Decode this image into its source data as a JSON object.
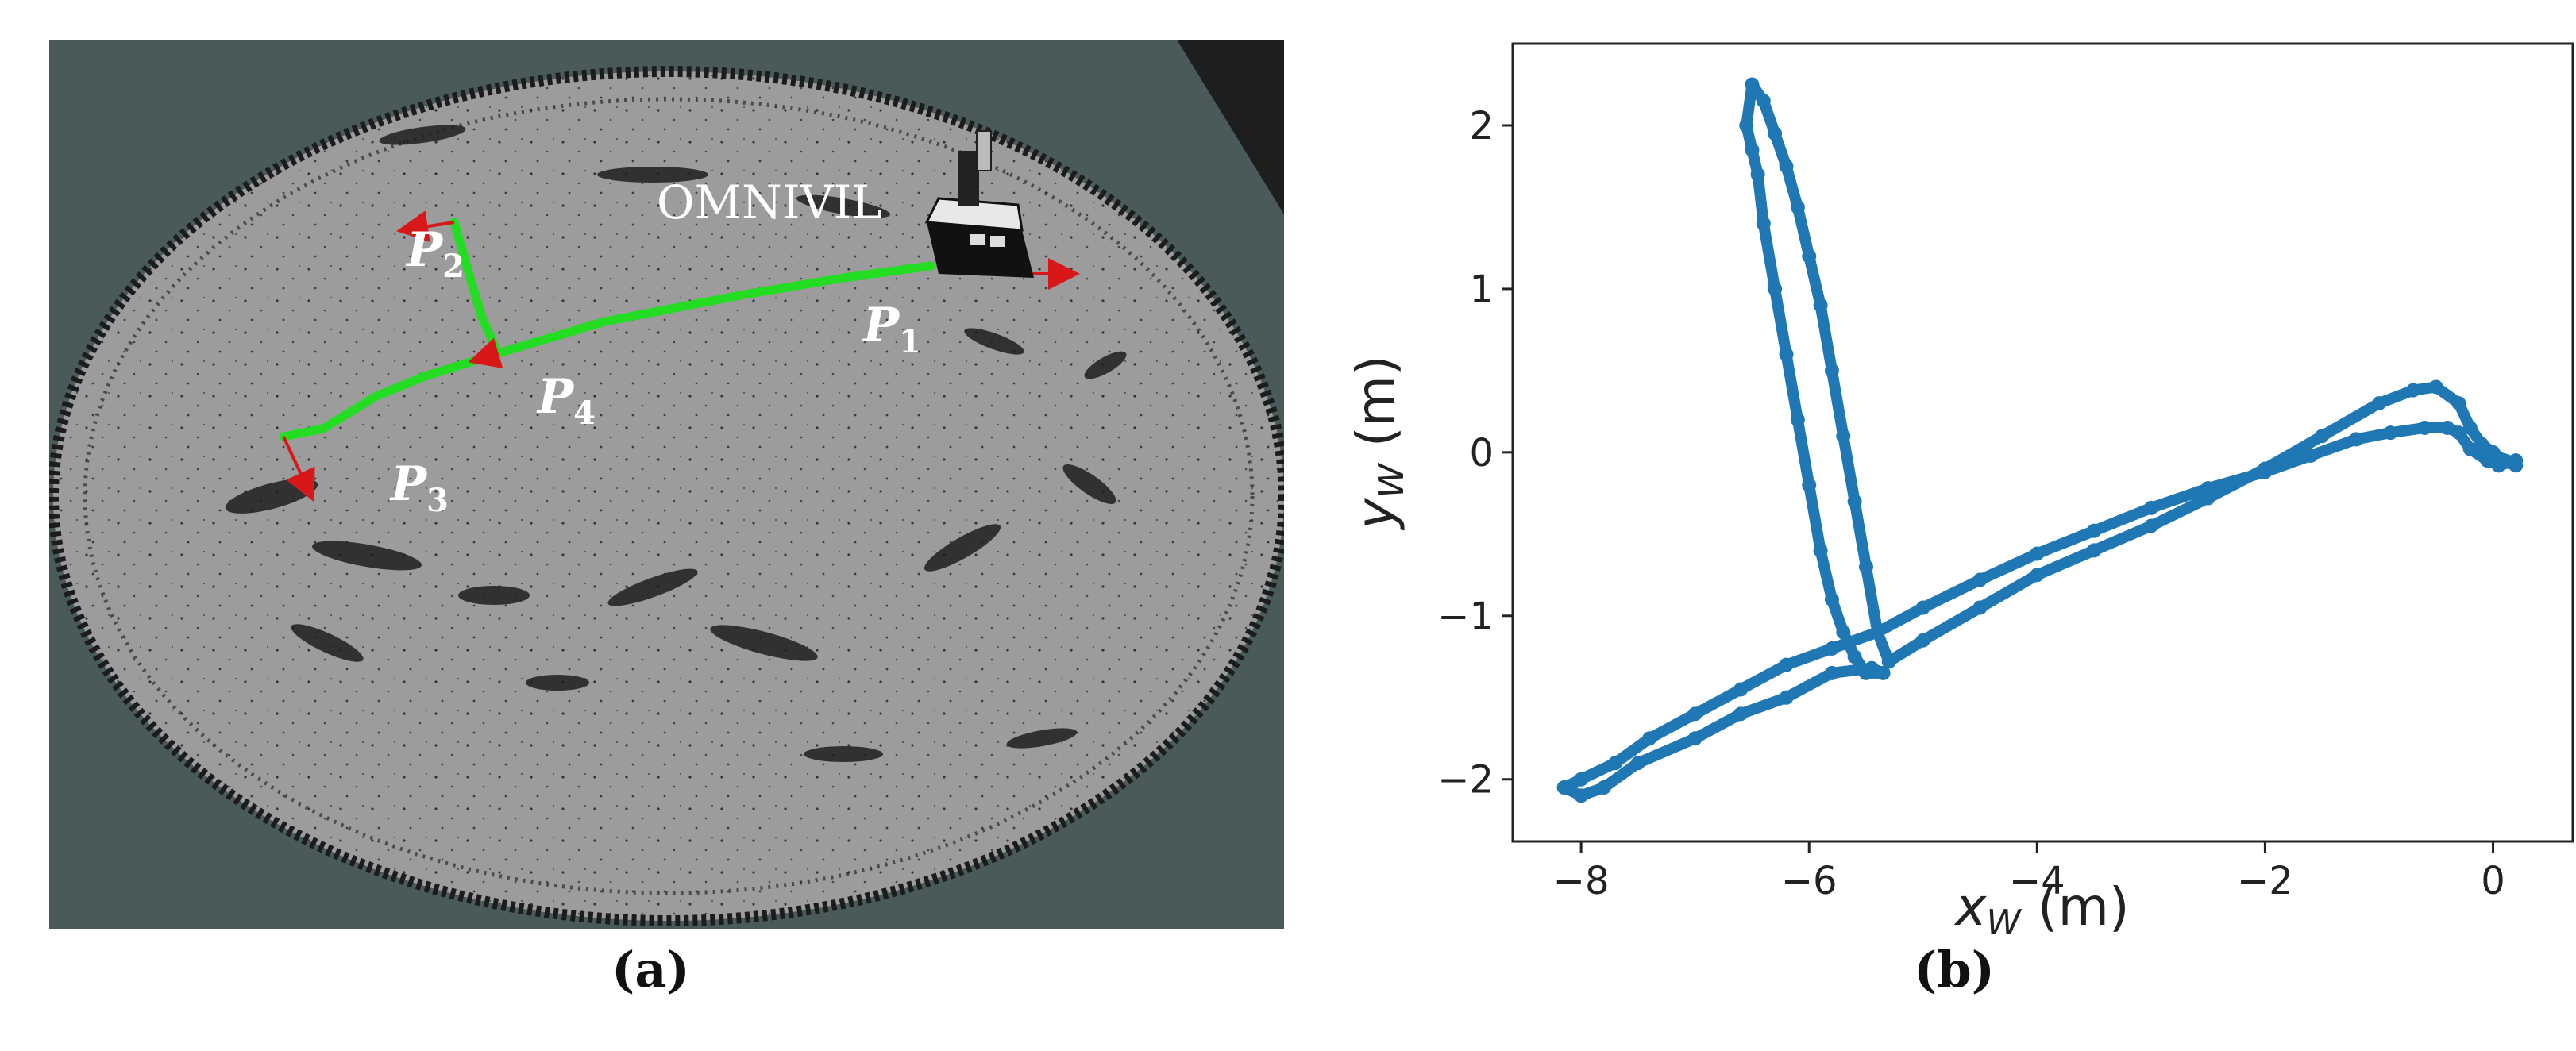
{
  "panel_a": {
    "robot_label": "OMNIVIL",
    "points": [
      {
        "base": "P",
        "sub": "1"
      },
      {
        "base": "P",
        "sub": "2"
      },
      {
        "base": "P",
        "sub": "3"
      },
      {
        "base": "P",
        "sub": "4"
      }
    ],
    "caption": "(a)",
    "colors": {
      "background": "#4a5a5a",
      "map": "#9a9a9a",
      "path": "#22dd22",
      "pose_arrow": "#d81818"
    }
  },
  "panel_b": {
    "caption": "(b)"
  },
  "chart_data": {
    "type": "line",
    "title": "",
    "xlabel": "x_W (m)",
    "ylabel": "y_W (m)",
    "xlim": [
      -8.6,
      0.7
    ],
    "ylim": [
      -2.38,
      2.5
    ],
    "xticks": [
      -8,
      -6,
      -4,
      -2,
      0
    ],
    "yticks": [
      -2,
      -1,
      0,
      1,
      2
    ],
    "grid": false,
    "line_color": "#1f77b4",
    "series": [
      {
        "x": [
          0.2,
          0.1,
          0.0,
          -0.1,
          -0.2,
          -0.3,
          -0.5,
          -0.7,
          -1.0,
          -1.5,
          -2.0,
          -2.5,
          -3.0,
          -3.5,
          -4.0,
          -4.5,
          -5.0,
          -5.3,
          -5.4,
          -5.5,
          -5.6,
          -5.7,
          -5.8,
          -5.9,
          -6.0,
          -6.1,
          -6.2,
          -6.3,
          -6.4,
          -6.5,
          -6.55,
          -6.5,
          -6.45,
          -6.4,
          -6.3,
          -6.2,
          -6.1,
          -6.0,
          -5.9,
          -5.8,
          -5.7,
          -5.6,
          -5.5,
          -5.35,
          -5.45,
          -5.8,
          -6.2,
          -6.6,
          -7.0,
          -7.5,
          -7.8,
          -8.0,
          -8.15,
          -8.0,
          -7.7,
          -7.4,
          -7.0,
          -6.6,
          -6.2,
          -5.8,
          -5.4,
          -5.0,
          -4.5,
          -4.0,
          -3.5,
          -3.0,
          -2.5,
          -2.0,
          -1.6,
          -1.2,
          -0.9,
          -0.6,
          -0.4,
          -0.3,
          -0.2,
          -0.05,
          0.05,
          0.15,
          0.2
        ],
        "y": [
          -0.08,
          -0.05,
          0.0,
          0.05,
          0.15,
          0.3,
          0.4,
          0.38,
          0.3,
          0.1,
          -0.1,
          -0.28,
          -0.45,
          -0.6,
          -0.75,
          -0.95,
          -1.15,
          -1.28,
          -1.1,
          -0.7,
          -0.3,
          0.1,
          0.5,
          0.9,
          1.2,
          1.5,
          1.75,
          1.95,
          2.15,
          2.25,
          2.0,
          1.85,
          1.7,
          1.4,
          1.0,
          0.6,
          0.2,
          -0.2,
          -0.6,
          -0.9,
          -1.1,
          -1.25,
          -1.35,
          -1.35,
          -1.32,
          -1.35,
          -1.5,
          -1.6,
          -1.75,
          -1.9,
          -2.05,
          -2.1,
          -2.05,
          -2.0,
          -1.9,
          -1.75,
          -1.6,
          -1.45,
          -1.3,
          -1.2,
          -1.1,
          -0.95,
          -0.78,
          -0.62,
          -0.48,
          -0.34,
          -0.22,
          -0.12,
          -0.02,
          0.08,
          0.12,
          0.15,
          0.15,
          0.12,
          0.02,
          -0.05,
          -0.08,
          -0.06,
          -0.05
        ]
      }
    ]
  }
}
